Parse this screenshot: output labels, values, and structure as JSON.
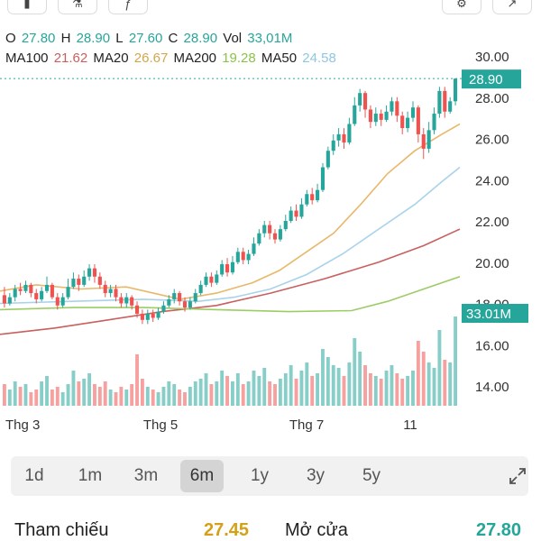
{
  "ohlc": {
    "o_label": "O",
    "o_value": "27.80",
    "h_label": "H",
    "h_value": "28.90",
    "l_label": "L",
    "l_value": "27.60",
    "c_label": "C",
    "c_value": "28.90",
    "vol_label": "Vol",
    "vol_value": "33,01M"
  },
  "ma": {
    "ma100_label": "MA100",
    "ma100_value": "21.62",
    "ma20_label": "MA20",
    "ma20_value": "26.67",
    "ma200_label": "MA200",
    "ma200_value": "19.28",
    "ma50_label": "MA50",
    "ma50_value": "24.58"
  },
  "colors": {
    "up": "#26a69a",
    "down": "#ef5350",
    "ma100": "#c95f5f",
    "ma20": "#e8b86a",
    "ma200": "#9ccc65",
    "ma50": "#a8d3ea",
    "price_tag": "#26a69a"
  },
  "price_tag": "28.90",
  "volume_tag": "33.01M",
  "chart_data": {
    "type": "candlestick",
    "ylim": [
      13,
      30.5
    ],
    "y_ticks": [
      "30.00",
      "28.00",
      "26.00",
      "24.00",
      "22.00",
      "20.00",
      "18.00",
      "16.00",
      "14.00"
    ],
    "x_ticks": [
      "Thg 3",
      "Thg 5",
      "Thg 7",
      "11"
    ],
    "last_price": 28.9,
    "last_volume": "33.01M",
    "ma_lines": [
      {
        "name": "MA20",
        "points": [
          [
            0,
            18.6
          ],
          [
            40,
            18.9
          ],
          [
            90,
            18.7
          ],
          [
            140,
            18.8
          ],
          [
            200,
            18.2
          ],
          [
            240,
            18.5
          ],
          [
            280,
            19.0
          ],
          [
            310,
            19.6
          ],
          [
            340,
            20.5
          ],
          [
            370,
            21.4
          ],
          [
            400,
            22.8
          ],
          [
            430,
            24.3
          ],
          [
            460,
            25.4
          ],
          [
            490,
            26.2
          ],
          [
            510,
            26.7
          ]
        ]
      },
      {
        "name": "MA50",
        "points": [
          [
            0,
            18.0
          ],
          [
            80,
            18.1
          ],
          [
            160,
            18.2
          ],
          [
            220,
            18.1
          ],
          [
            260,
            18.3
          ],
          [
            300,
            18.7
          ],
          [
            340,
            19.4
          ],
          [
            380,
            20.4
          ],
          [
            420,
            21.6
          ],
          [
            460,
            22.8
          ],
          [
            490,
            23.9
          ],
          [
            510,
            24.6
          ]
        ]
      },
      {
        "name": "MA100",
        "points": [
          [
            0,
            16.5
          ],
          [
            60,
            16.8
          ],
          [
            120,
            17.2
          ],
          [
            180,
            17.6
          ],
          [
            240,
            17.9
          ],
          [
            300,
            18.5
          ],
          [
            360,
            19.2
          ],
          [
            420,
            20.0
          ],
          [
            470,
            20.8
          ],
          [
            510,
            21.6
          ]
        ]
      },
      {
        "name": "MA200",
        "points": [
          [
            0,
            17.7
          ],
          [
            80,
            17.8
          ],
          [
            160,
            17.8
          ],
          [
            240,
            17.7
          ],
          [
            320,
            17.6
          ],
          [
            390,
            17.65
          ],
          [
            430,
            18.1
          ],
          [
            470,
            18.7
          ],
          [
            510,
            19.3
          ]
        ]
      }
    ],
    "candles": [
      [
        18.4,
        18.0,
        18.8,
        17.8
      ],
      [
        18.0,
        18.3,
        18.5,
        17.9
      ],
      [
        18.3,
        18.7,
        18.9,
        18.1
      ],
      [
        18.7,
        18.6,
        19.0,
        18.4
      ],
      [
        18.6,
        18.9,
        19.1,
        18.5
      ],
      [
        18.9,
        18.5,
        19.0,
        18.3
      ],
      [
        18.5,
        18.2,
        18.7,
        18.0
      ],
      [
        18.2,
        18.6,
        18.8,
        18.1
      ],
      [
        18.6,
        18.9,
        19.3,
        18.5
      ],
      [
        18.9,
        18.3,
        19.0,
        18.2
      ],
      [
        18.3,
        17.9,
        18.5,
        17.7
      ],
      [
        17.9,
        18.3,
        18.5,
        17.8
      ],
      [
        18.3,
        18.8,
        19.2,
        18.2
      ],
      [
        18.8,
        19.2,
        19.5,
        18.7
      ],
      [
        19.2,
        18.9,
        19.4,
        18.6
      ],
      [
        18.9,
        19.3,
        19.6,
        18.8
      ],
      [
        19.3,
        19.7,
        19.9,
        19.1
      ],
      [
        19.7,
        19.3,
        19.9,
        19.0
      ],
      [
        19.3,
        18.9,
        19.5,
        18.7
      ],
      [
        18.9,
        18.5,
        19.1,
        18.3
      ],
      [
        18.5,
        18.7,
        18.9,
        18.3
      ],
      [
        18.7,
        18.3,
        18.9,
        18.1
      ],
      [
        18.3,
        18.0,
        18.5,
        17.8
      ],
      [
        18.0,
        18.3,
        18.5,
        17.8
      ],
      [
        18.3,
        17.9,
        18.4,
        17.7
      ],
      [
        17.9,
        17.5,
        18.1,
        17.3
      ],
      [
        17.5,
        17.2,
        17.7,
        17.0
      ],
      [
        17.2,
        17.5,
        17.7,
        17.0
      ],
      [
        17.5,
        17.3,
        17.7,
        17.1
      ],
      [
        17.3,
        17.6,
        17.8,
        17.2
      ],
      [
        17.6,
        17.9,
        18.1,
        17.5
      ],
      [
        17.9,
        18.2,
        18.4,
        17.8
      ],
      [
        18.2,
        18.5,
        18.7,
        18.0
      ],
      [
        18.5,
        18.1,
        18.6,
        17.9
      ],
      [
        18.1,
        17.8,
        18.3,
        17.6
      ],
      [
        17.8,
        18.1,
        18.3,
        17.7
      ],
      [
        18.1,
        18.5,
        18.7,
        18.0
      ],
      [
        18.5,
        18.9,
        19.1,
        18.4
      ],
      [
        18.9,
        19.3,
        19.5,
        18.8
      ],
      [
        19.3,
        19.0,
        19.5,
        18.8
      ],
      [
        19.0,
        19.4,
        19.6,
        18.9
      ],
      [
        19.4,
        19.9,
        20.1,
        19.3
      ],
      [
        19.9,
        19.5,
        20.2,
        19.3
      ],
      [
        19.5,
        20.0,
        20.3,
        19.4
      ],
      [
        20.0,
        20.5,
        20.7,
        19.9
      ],
      [
        20.5,
        20.1,
        20.7,
        19.9
      ],
      [
        20.1,
        20.4,
        20.6,
        19.9
      ],
      [
        20.4,
        20.9,
        21.2,
        20.3
      ],
      [
        20.9,
        21.4,
        21.6,
        20.8
      ],
      [
        21.4,
        21.8,
        22.0,
        21.2
      ],
      [
        21.8,
        21.4,
        22.0,
        21.1
      ],
      [
        21.4,
        21.1,
        21.6,
        20.9
      ],
      [
        21.1,
        21.6,
        21.8,
        21.0
      ],
      [
        21.6,
        22.0,
        22.3,
        21.5
      ],
      [
        22.0,
        22.5,
        22.7,
        21.9
      ],
      [
        22.5,
        22.2,
        22.8,
        22.0
      ],
      [
        22.2,
        22.8,
        23.1,
        22.1
      ],
      [
        22.8,
        23.3,
        23.5,
        22.7
      ],
      [
        23.3,
        23.0,
        23.6,
        22.8
      ],
      [
        23.0,
        23.5,
        23.8,
        22.9
      ],
      [
        23.5,
        24.6,
        24.8,
        23.4
      ],
      [
        24.6,
        25.4,
        25.6,
        24.5
      ],
      [
        25.4,
        25.9,
        26.2,
        25.2
      ],
      [
        25.9,
        26.2,
        26.5,
        25.6
      ],
      [
        26.2,
        25.8,
        26.5,
        25.5
      ],
      [
        25.8,
        26.7,
        27.0,
        25.7
      ],
      [
        26.7,
        27.6,
        28.0,
        26.6
      ],
      [
        27.6,
        28.2,
        28.4,
        27.3
      ],
      [
        28.2,
        27.4,
        28.3,
        27.0
      ],
      [
        27.4,
        26.8,
        27.6,
        26.5
      ],
      [
        26.8,
        27.2,
        27.5,
        26.6
      ],
      [
        27.2,
        26.9,
        27.4,
        26.6
      ],
      [
        26.9,
        27.3,
        27.6,
        26.8
      ],
      [
        27.3,
        27.8,
        28.0,
        27.1
      ],
      [
        27.8,
        27.1,
        28.0,
        26.8
      ],
      [
        27.1,
        26.5,
        27.3,
        26.2
      ],
      [
        26.5,
        27.0,
        27.3,
        26.3
      ],
      [
        27.0,
        27.5,
        27.8,
        26.8
      ],
      [
        27.5,
        26.2,
        27.6,
        25.8
      ],
      [
        26.2,
        25.5,
        26.5,
        25.0
      ],
      [
        25.5,
        26.4,
        26.8,
        25.3
      ],
      [
        26.4,
        27.2,
        27.5,
        26.2
      ],
      [
        27.2,
        28.3,
        28.5,
        27.0
      ],
      [
        28.3,
        27.3,
        28.5,
        27.0
      ],
      [
        27.3,
        27.8,
        28.0,
        27.2
      ],
      [
        27.8,
        28.9,
        28.9,
        27.6
      ]
    ],
    "volumes": [
      0.8,
      0.6,
      0.9,
      0.7,
      0.8,
      0.5,
      0.6,
      0.9,
      1.1,
      0.6,
      0.7,
      0.5,
      0.8,
      1.3,
      0.9,
      1.0,
      1.2,
      0.8,
      0.7,
      0.9,
      0.6,
      0.5,
      0.7,
      0.6,
      0.8,
      1.9,
      1.0,
      0.7,
      0.6,
      0.5,
      0.7,
      0.9,
      0.8,
      0.6,
      0.5,
      0.7,
      0.9,
      1.0,
      1.2,
      0.8,
      0.9,
      1.3,
      1.1,
      0.9,
      1.2,
      0.8,
      0.9,
      1.3,
      1.1,
      1.4,
      0.9,
      0.8,
      1.0,
      1.2,
      1.5,
      1.0,
      1.3,
      1.6,
      1.1,
      1.2,
      2.1,
      1.8,
      1.5,
      1.4,
      1.1,
      1.6,
      2.5,
      2.0,
      1.5,
      1.2,
      1.1,
      1.0,
      1.3,
      1.5,
      1.2,
      1.0,
      1.1,
      1.3,
      2.4,
      2.0,
      1.6,
      1.4,
      2.8,
      1.7,
      1.6,
      3.3
    ]
  },
  "ranges": [
    "1d",
    "1m",
    "3m",
    "6m",
    "1y",
    "3y",
    "5y"
  ],
  "active_range": "6m",
  "footer": {
    "ref_label": "Tham chiếu",
    "ref_value": "27.45",
    "open_label": "Mở cửa",
    "open_value": "27.80",
    "ref_color": "#d4a017",
    "open_color": "#26a69a"
  }
}
